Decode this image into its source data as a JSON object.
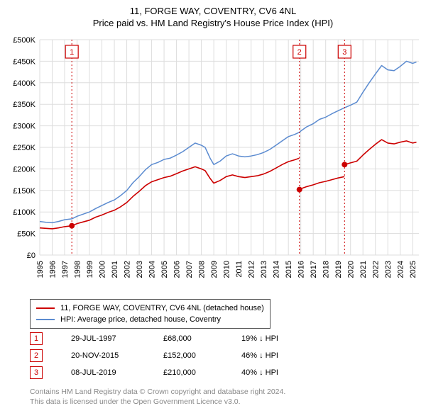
{
  "title_line1": "11, FORGE WAY, COVENTRY, CV6 4NL",
  "title_line2": "Price paid vs. HM Land Registry's House Price Index (HPI)",
  "chart": {
    "type": "line",
    "plot_bg": "#ffffff",
    "grid_color": "#dddddd",
    "axis_color": "#000000",
    "label_fontsize": 11,
    "x_min": 1995.0,
    "x_max": 2025.5,
    "x_ticks": [
      1995,
      1996,
      1997,
      1998,
      1999,
      2000,
      2001,
      2002,
      2003,
      2004,
      2005,
      2006,
      2007,
      2008,
      2009,
      2010,
      2011,
      2012,
      2013,
      2014,
      2015,
      2016,
      2017,
      2018,
      2019,
      2020,
      2021,
      2022,
      2023,
      2024,
      2025
    ],
    "y_min": 0,
    "y_max": 500000,
    "y_ticks": [
      0,
      50000,
      100000,
      150000,
      200000,
      250000,
      300000,
      350000,
      400000,
      450000,
      500000
    ],
    "y_tick_labels": [
      "£0",
      "£50K",
      "£100K",
      "£150K",
      "£200K",
      "£250K",
      "£300K",
      "£350K",
      "£400K",
      "£450K",
      "£500K"
    ],
    "series": [
      {
        "name": "hpi",
        "label": "HPI: Average price, detached house, Coventry",
        "color": "#5b8bd0",
        "width": 1.5,
        "points": [
          [
            1995.0,
            78000
          ],
          [
            1995.5,
            76000
          ],
          [
            1996.0,
            75000
          ],
          [
            1996.5,
            78000
          ],
          [
            1997.0,
            82000
          ],
          [
            1997.58,
            84000
          ],
          [
            1998.0,
            90000
          ],
          [
            1998.5,
            95000
          ],
          [
            1999.0,
            100000
          ],
          [
            1999.5,
            108000
          ],
          [
            2000.0,
            115000
          ],
          [
            2000.5,
            122000
          ],
          [
            2001.0,
            128000
          ],
          [
            2001.5,
            138000
          ],
          [
            2002.0,
            150000
          ],
          [
            2002.5,
            168000
          ],
          [
            2003.0,
            182000
          ],
          [
            2003.5,
            198000
          ],
          [
            2004.0,
            210000
          ],
          [
            2004.5,
            215000
          ],
          [
            2005.0,
            222000
          ],
          [
            2005.5,
            225000
          ],
          [
            2006.0,
            232000
          ],
          [
            2006.5,
            240000
          ],
          [
            2007.0,
            250000
          ],
          [
            2007.5,
            260000
          ],
          [
            2008.0,
            255000
          ],
          [
            2008.3,
            250000
          ],
          [
            2008.7,
            225000
          ],
          [
            2009.0,
            210000
          ],
          [
            2009.5,
            218000
          ],
          [
            2010.0,
            230000
          ],
          [
            2010.5,
            235000
          ],
          [
            2011.0,
            230000
          ],
          [
            2011.5,
            228000
          ],
          [
            2012.0,
            230000
          ],
          [
            2012.5,
            233000
          ],
          [
            2013.0,
            238000
          ],
          [
            2013.5,
            245000
          ],
          [
            2014.0,
            255000
          ],
          [
            2014.5,
            265000
          ],
          [
            2015.0,
            275000
          ],
          [
            2015.5,
            280000
          ],
          [
            2015.89,
            285000
          ],
          [
            2016.0,
            288000
          ],
          [
            2016.5,
            298000
          ],
          [
            2017.0,
            305000
          ],
          [
            2017.5,
            315000
          ],
          [
            2018.0,
            320000
          ],
          [
            2018.5,
            328000
          ],
          [
            2019.0,
            335000
          ],
          [
            2019.52,
            342000
          ],
          [
            2020.0,
            348000
          ],
          [
            2020.5,
            355000
          ],
          [
            2021.0,
            378000
          ],
          [
            2021.5,
            400000
          ],
          [
            2022.0,
            420000
          ],
          [
            2022.5,
            440000
          ],
          [
            2023.0,
            430000
          ],
          [
            2023.5,
            428000
          ],
          [
            2024.0,
            438000
          ],
          [
            2024.5,
            450000
          ],
          [
            2025.0,
            445000
          ],
          [
            2025.3,
            448000
          ]
        ]
      },
      {
        "name": "property",
        "label": "11, FORGE WAY, COVENTRY, CV6 4NL (detached house)",
        "color": "#cc0000",
        "width": 1.6,
        "points": [
          [
            1995.0,
            63000
          ],
          [
            1995.5,
            62000
          ],
          [
            1996.0,
            61000
          ],
          [
            1996.5,
            63000
          ],
          [
            1997.0,
            66000
          ],
          [
            1997.58,
            68000
          ],
          [
            1998.0,
            73000
          ],
          [
            1998.5,
            77000
          ],
          [
            1999.0,
            81000
          ],
          [
            1999.5,
            88000
          ],
          [
            2000.0,
            93000
          ],
          [
            2000.5,
            99000
          ],
          [
            2001.0,
            104000
          ],
          [
            2001.5,
            112000
          ],
          [
            2002.0,
            122000
          ],
          [
            2002.5,
            136000
          ],
          [
            2003.0,
            148000
          ],
          [
            2003.5,
            161000
          ],
          [
            2004.0,
            170000
          ],
          [
            2004.5,
            175000
          ],
          [
            2005.0,
            180000
          ],
          [
            2005.5,
            183000
          ],
          [
            2006.0,
            189000
          ],
          [
            2006.5,
            195000
          ],
          [
            2007.0,
            200000
          ],
          [
            2007.5,
            205000
          ],
          [
            2008.0,
            200000
          ],
          [
            2008.3,
            196000
          ],
          [
            2008.7,
            178000
          ],
          [
            2009.0,
            167000
          ],
          [
            2009.5,
            173000
          ],
          [
            2010.0,
            182000
          ],
          [
            2010.5,
            186000
          ],
          [
            2011.0,
            182000
          ],
          [
            2011.5,
            180000
          ],
          [
            2012.0,
            182000
          ],
          [
            2012.5,
            184000
          ],
          [
            2013.0,
            188000
          ],
          [
            2013.5,
            194000
          ],
          [
            2014.0,
            202000
          ],
          [
            2014.5,
            210000
          ],
          [
            2015.0,
            217000
          ],
          [
            2015.5,
            221000
          ],
          [
            2015.88,
            225000
          ]
        ]
      },
      {
        "name": "property_after_sale2",
        "label": "",
        "color": "#cc0000",
        "width": 1.6,
        "points": [
          [
            2015.89,
            152000
          ],
          [
            2016.0,
            154000
          ],
          [
            2016.5,
            159000
          ],
          [
            2017.0,
            163000
          ],
          [
            2017.5,
            168000
          ],
          [
            2018.0,
            171000
          ],
          [
            2018.5,
            175000
          ],
          [
            2019.0,
            179000
          ],
          [
            2019.51,
            182000
          ]
        ]
      },
      {
        "name": "property_after_sale3",
        "label": "",
        "color": "#cc0000",
        "width": 1.6,
        "points": [
          [
            2019.52,
            210000
          ],
          [
            2020.0,
            214000
          ],
          [
            2020.5,
            218000
          ],
          [
            2021.0,
            232000
          ],
          [
            2021.5,
            245000
          ],
          [
            2022.0,
            257000
          ],
          [
            2022.5,
            268000
          ],
          [
            2023.0,
            260000
          ],
          [
            2023.5,
            258000
          ],
          [
            2024.0,
            262000
          ],
          [
            2024.5,
            265000
          ],
          [
            2025.0,
            260000
          ],
          [
            2025.3,
            262000
          ]
        ]
      }
    ],
    "sale_markers": [
      {
        "n": 1,
        "x": 1997.58,
        "y": 68000,
        "box_color": "#cc0000",
        "dot_color": "#cc0000",
        "dash_color": "#cc0000"
      },
      {
        "n": 2,
        "x": 2015.89,
        "y": 152000,
        "box_color": "#cc0000",
        "dot_color": "#cc0000",
        "dash_color": "#cc0000"
      },
      {
        "n": 3,
        "x": 2019.52,
        "y": 210000,
        "box_color": "#cc0000",
        "dot_color": "#cc0000",
        "dash_color": "#cc0000"
      }
    ],
    "marker_radius": 4
  },
  "legend": {
    "items": [
      {
        "color": "#cc0000",
        "label": "11, FORGE WAY, COVENTRY, CV6 4NL (detached house)"
      },
      {
        "color": "#5b8bd0",
        "label": "HPI: Average price, detached house, Coventry"
      }
    ]
  },
  "sales_table": [
    {
      "n": "1",
      "date": "29-JUL-1997",
      "price": "£68,000",
      "delta": "19% ↓ HPI"
    },
    {
      "n": "2",
      "date": "20-NOV-2015",
      "price": "£152,000",
      "delta": "46% ↓ HPI"
    },
    {
      "n": "3",
      "date": "08-JUL-2019",
      "price": "£210,000",
      "delta": "40% ↓ HPI"
    }
  ],
  "footer": {
    "line1": "Contains HM Land Registry data © Crown copyright and database right 2024.",
    "line2": "This data is licensed under the Open Government Licence v3.0."
  }
}
